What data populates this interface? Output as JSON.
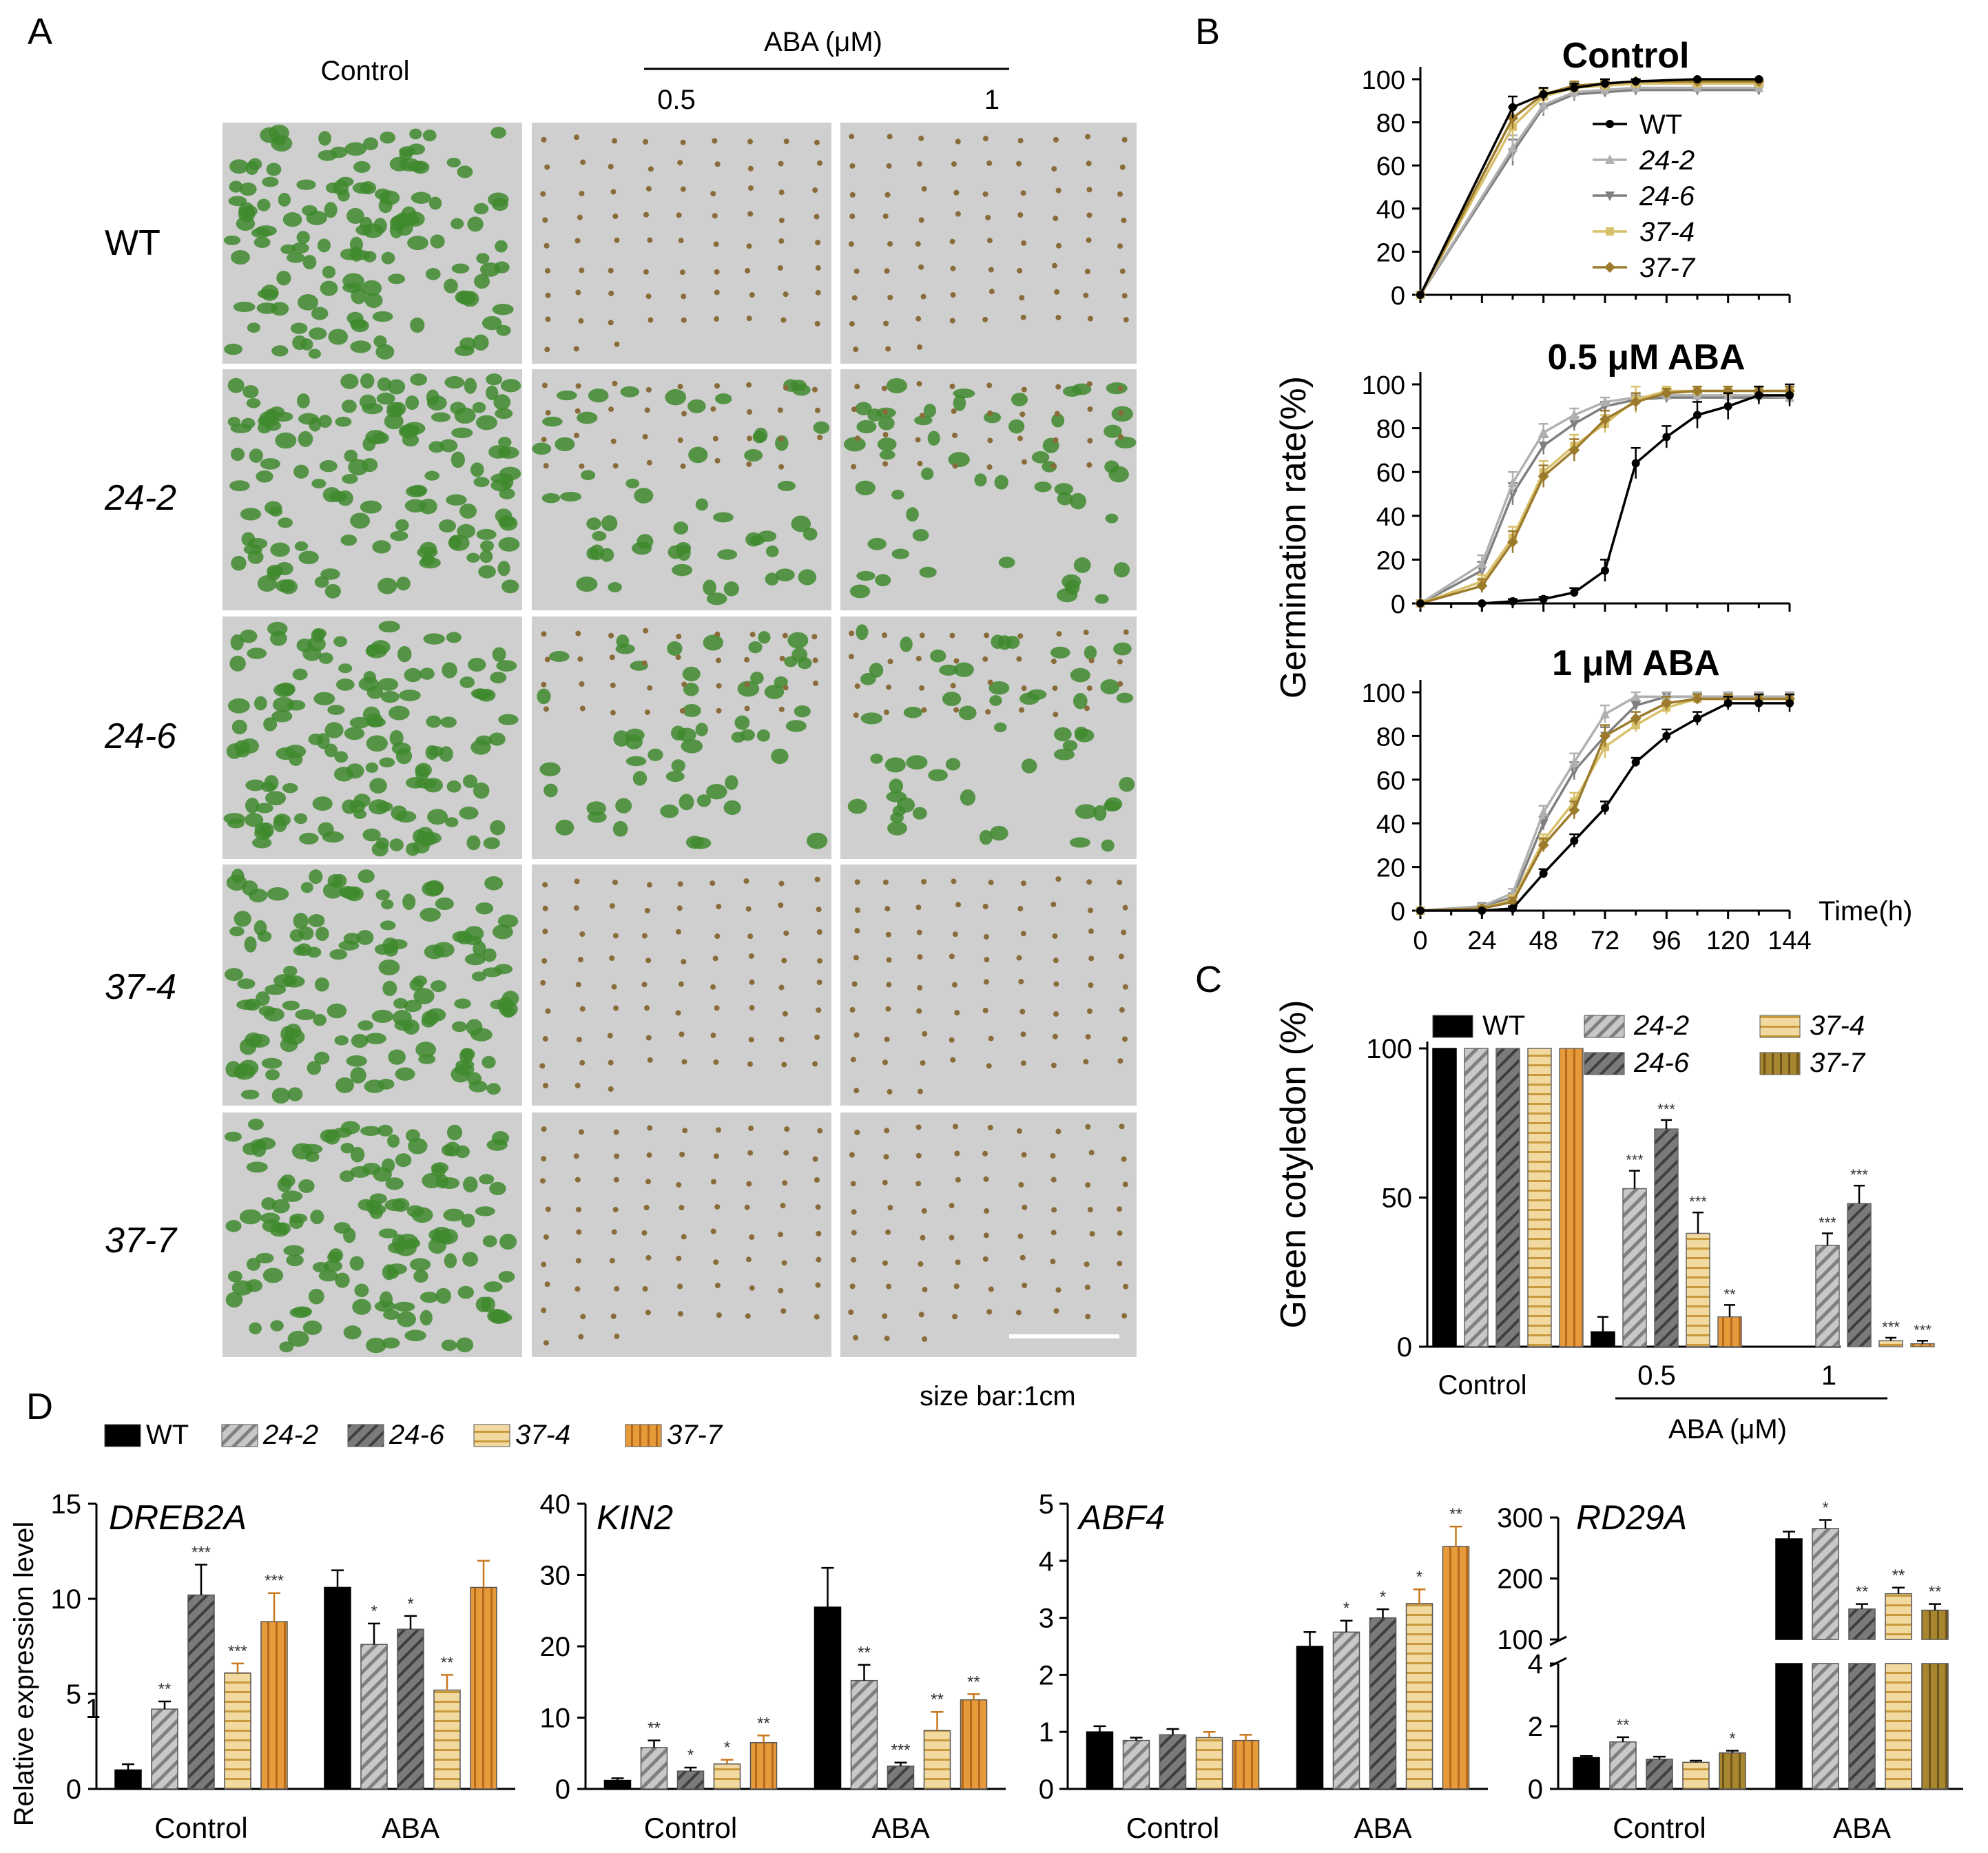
{
  "colors": {
    "WT": "#000000",
    "24-2": "#b0b0b0",
    "24-6": "#7f7f7f",
    "37-4": "#d8c06a",
    "37-7": "#9c7a2c",
    "orange": "#e8962e",
    "plate_bg": "#cfcfcf",
    "plate_seedling": "#3f8a2e",
    "photo_frame": "#ffffff"
  },
  "panel_a": {
    "letter": "A",
    "col_control": "Control",
    "aba_header": "ABA (μM)",
    "aba_levels": [
      "0.5",
      "1"
    ],
    "rows": [
      "WT",
      "24-2",
      "24-6",
      "37-4",
      "37-7"
    ],
    "size_bar": "size bar:1cm",
    "plate_cover": [
      [
        "dense",
        "sparse",
        "sparse"
      ],
      [
        "dense",
        "medium",
        "medium"
      ],
      [
        "dense",
        "medium",
        "medium"
      ],
      [
        "dense",
        "sparse",
        "sparse"
      ],
      [
        "dense",
        "sparse",
        "sparse"
      ]
    ]
  },
  "panel_b": {
    "letter": "B",
    "ylabel": "Germination rate(%)",
    "xlabel": "Time(h)",
    "xticks": [
      "0",
      "24",
      "48",
      "72",
      "96",
      "120",
      "144"
    ],
    "yticks": [
      "0",
      "20",
      "40",
      "60",
      "80",
      "100"
    ],
    "legend": [
      "WT",
      "24-2",
      "24-6",
      "37-4",
      "37-7"
    ]
  },
  "panel_c": {
    "letter": "C",
    "ylabel": "Green cotyledon (%)",
    "yticks": [
      "0",
      "50",
      "100"
    ],
    "groups": [
      "Control",
      "0.5",
      "1"
    ],
    "aba_label": "ABA (μM)",
    "legend": [
      "WT",
      "24-2",
      "24-6",
      "37-4",
      "37-7"
    ]
  },
  "panel_d": {
    "letter": "D",
    "ylabel": "Relative expression level",
    "legend": [
      "WT",
      "24-2",
      "24-6",
      "37-4",
      "37-7"
    ],
    "extra_tick": "1"
  },
  "chart_data": [
    {
      "id": "B-control",
      "type": "line",
      "title": "Control",
      "xlabel": "",
      "ylabel": "Germination rate(%)",
      "x": [
        0,
        36,
        48,
        60,
        72,
        84,
        108,
        132
      ],
      "xlim": [
        0,
        144
      ],
      "ylim": [
        0,
        100
      ],
      "series": [
        {
          "name": "WT",
          "values": [
            0,
            87,
            93,
            96,
            98,
            99,
            100,
            100
          ],
          "err": [
            0,
            5,
            3,
            2,
            2,
            1,
            0,
            0
          ]
        },
        {
          "name": "24-2",
          "values": [
            0,
            68,
            88,
            94,
            95,
            96,
            96,
            96
          ],
          "err": [
            0,
            6,
            4,
            3,
            2,
            2,
            2,
            2
          ]
        },
        {
          "name": "24-6",
          "values": [
            0,
            66,
            87,
            93,
            94,
            95,
            95,
            95
          ],
          "err": [
            0,
            6,
            4,
            3,
            2,
            2,
            2,
            2
          ]
        },
        {
          "name": "37-4",
          "values": [
            0,
            78,
            92,
            96,
            97,
            98,
            98,
            98
          ],
          "err": [
            0,
            5,
            3,
            2,
            2,
            1,
            1,
            1
          ]
        },
        {
          "name": "37-7",
          "values": [
            0,
            82,
            93,
            97,
            98,
            99,
            99,
            99
          ],
          "err": [
            0,
            5,
            3,
            2,
            1,
            1,
            1,
            1
          ]
        }
      ]
    },
    {
      "id": "B-0.5",
      "type": "line",
      "title": "0.5 μM ABA",
      "x": [
        0,
        24,
        36,
        48,
        60,
        72,
        84,
        96,
        108,
        120,
        132,
        144
      ],
      "xlim": [
        0,
        144
      ],
      "ylim": [
        0,
        100
      ],
      "series": [
        {
          "name": "WT",
          "values": [
            0,
            0,
            1,
            2,
            5,
            15,
            64,
            76,
            86,
            90,
            95,
            95
          ],
          "err": [
            0,
            0,
            1,
            1,
            2,
            5,
            7,
            5,
            6,
            6,
            4,
            5
          ]
        },
        {
          "name": "24-2",
          "values": [
            0,
            18,
            55,
            78,
            86,
            92,
            94,
            95,
            95,
            95,
            95,
            94
          ],
          "err": [
            0,
            4,
            5,
            4,
            3,
            2,
            2,
            2,
            2,
            2,
            2,
            3
          ]
        },
        {
          "name": "24-6",
          "values": [
            0,
            15,
            50,
            72,
            82,
            90,
            93,
            94,
            94,
            94,
            94,
            94
          ],
          "err": [
            0,
            4,
            5,
            4,
            3,
            2,
            2,
            2,
            2,
            2,
            2,
            3
          ]
        },
        {
          "name": "37-4",
          "values": [
            0,
            10,
            30,
            60,
            72,
            82,
            93,
            97,
            97,
            97,
            97,
            97
          ],
          "err": [
            0,
            3,
            5,
            5,
            5,
            4,
            6,
            2,
            2,
            2,
            2,
            2
          ]
        },
        {
          "name": "37-7",
          "values": [
            0,
            8,
            28,
            58,
            70,
            84,
            92,
            96,
            97,
            97,
            97,
            97
          ],
          "err": [
            0,
            3,
            5,
            5,
            5,
            4,
            4,
            2,
            2,
            2,
            2,
            2
          ]
        }
      ]
    },
    {
      "id": "B-1",
      "type": "line",
      "title": "1 μM ABA",
      "x": [
        0,
        24,
        36,
        48,
        60,
        72,
        84,
        96,
        108,
        120,
        132,
        144
      ],
      "xlim": [
        0,
        144
      ],
      "ylim": [
        0,
        100
      ],
      "series": [
        {
          "name": "WT",
          "values": [
            0,
            0,
            1,
            17,
            32,
            47,
            68,
            80,
            88,
            95,
            95,
            95
          ],
          "err": [
            0,
            0,
            1,
            2,
            3,
            3,
            2,
            3,
            3,
            3,
            4,
            4
          ]
        },
        {
          "name": "24-2",
          "values": [
            0,
            2,
            8,
            45,
            68,
            90,
            98,
            98,
            98,
            98,
            98,
            98
          ],
          "err": [
            0,
            1,
            2,
            3,
            4,
            4,
            2,
            2,
            2,
            2,
            2,
            2
          ]
        },
        {
          "name": "24-6",
          "values": [
            0,
            2,
            6,
            40,
            64,
            80,
            94,
            98,
            98,
            98,
            98,
            98
          ],
          "err": [
            0,
            1,
            2,
            3,
            4,
            4,
            2,
            2,
            2,
            2,
            2,
            2
          ]
        },
        {
          "name": "37-4",
          "values": [
            0,
            1,
            5,
            32,
            50,
            75,
            85,
            93,
            97,
            97,
            97,
            97
          ],
          "err": [
            0,
            1,
            2,
            3,
            4,
            5,
            3,
            3,
            2,
            2,
            2,
            2
          ]
        },
        {
          "name": "37-7",
          "values": [
            0,
            1,
            4,
            30,
            46,
            80,
            88,
            95,
            97,
            97,
            97,
            97
          ],
          "err": [
            0,
            1,
            2,
            3,
            4,
            5,
            3,
            3,
            2,
            2,
            2,
            2
          ]
        }
      ]
    },
    {
      "id": "C",
      "type": "bar",
      "ylabel": "Green cotyledon (%)",
      "categories": [
        "Control",
        "0.5",
        "1"
      ],
      "ylim": [
        0,
        100
      ],
      "series": [
        {
          "name": "WT",
          "values": [
            100,
            5,
            0
          ],
          "err": [
            0,
            5,
            0
          ],
          "sig": [
            "",
            "",
            ""
          ]
        },
        {
          "name": "24-2",
          "values": [
            100,
            53,
            34
          ],
          "err": [
            0,
            6,
            4
          ],
          "sig": [
            "",
            "***",
            "***"
          ]
        },
        {
          "name": "24-6",
          "values": [
            100,
            73,
            48
          ],
          "err": [
            0,
            3,
            6
          ],
          "sig": [
            "",
            "***",
            "***"
          ]
        },
        {
          "name": "37-4",
          "values": [
            100,
            38,
            2
          ],
          "err": [
            0,
            7,
            1
          ],
          "sig": [
            "",
            "***",
            "***"
          ]
        },
        {
          "name": "37-7",
          "values": [
            100,
            10,
            1
          ],
          "err": [
            0,
            4,
            1
          ],
          "sig": [
            "",
            "**",
            "***"
          ]
        }
      ]
    },
    {
      "id": "D-DREB2A",
      "type": "bar",
      "title": "DREB2A",
      "categories": [
        "Control",
        "ABA"
      ],
      "ylim": [
        0,
        15
      ],
      "yticks": [
        "0",
        "5",
        "10",
        "15"
      ],
      "series": [
        {
          "name": "WT",
          "values": [
            1.0,
            10.6
          ],
          "err": [
            0.3,
            0.9
          ],
          "sig": [
            "",
            ""
          ]
        },
        {
          "name": "24-2",
          "values": [
            4.2,
            7.6
          ],
          "err": [
            0.4,
            1.1
          ],
          "sig": [
            "**",
            "*"
          ]
        },
        {
          "name": "24-6",
          "values": [
            10.2,
            8.4
          ],
          "err": [
            1.6,
            0.7
          ],
          "sig": [
            "***",
            "*"
          ]
        },
        {
          "name": "37-4",
          "values": [
            6.1,
            5.2
          ],
          "err": [
            0.5,
            0.8
          ],
          "sig": [
            "***",
            "**"
          ]
        },
        {
          "name": "37-7",
          "values": [
            8.8,
            10.6
          ],
          "err": [
            1.5,
            1.4
          ],
          "sig": [
            "***",
            ""
          ]
        }
      ]
    },
    {
      "id": "D-KIN2",
      "type": "bar",
      "title": "KIN2",
      "categories": [
        "Control",
        "ABA"
      ],
      "ylim": [
        0,
        40
      ],
      "yticks": [
        "0",
        "10",
        "20",
        "30",
        "40"
      ],
      "series": [
        {
          "name": "WT",
          "values": [
            1.2,
            25.5
          ],
          "err": [
            0.3,
            5.5
          ],
          "sig": [
            "",
            ""
          ]
        },
        {
          "name": "24-2",
          "values": [
            5.8,
            15.2
          ],
          "err": [
            1.0,
            2.2
          ],
          "sig": [
            "**",
            "**"
          ]
        },
        {
          "name": "24-6",
          "values": [
            2.5,
            3.2
          ],
          "err": [
            0.5,
            0.5
          ],
          "sig": [
            "*",
            "***"
          ]
        },
        {
          "name": "37-4",
          "values": [
            3.5,
            8.2
          ],
          "err": [
            0.6,
            2.6
          ],
          "sig": [
            "*",
            "**"
          ]
        },
        {
          "name": "37-7",
          "values": [
            6.5,
            12.5
          ],
          "err": [
            1.0,
            0.8
          ],
          "sig": [
            "**",
            "**"
          ]
        }
      ]
    },
    {
      "id": "D-ABF4",
      "type": "bar",
      "title": "ABF4",
      "categories": [
        "Control",
        "ABA"
      ],
      "ylim": [
        0,
        5
      ],
      "yticks": [
        "0",
        "1",
        "2",
        "3",
        "4",
        "5"
      ],
      "series": [
        {
          "name": "WT",
          "values": [
            1.0,
            2.5
          ],
          "err": [
            0.1,
            0.25
          ],
          "sig": [
            "",
            ""
          ]
        },
        {
          "name": "24-2",
          "values": [
            0.85,
            2.75
          ],
          "err": [
            0.05,
            0.2
          ],
          "sig": [
            "",
            "*"
          ]
        },
        {
          "name": "24-6",
          "values": [
            0.95,
            3.0
          ],
          "err": [
            0.1,
            0.15
          ],
          "sig": [
            "",
            "*"
          ]
        },
        {
          "name": "37-4",
          "values": [
            0.9,
            3.25
          ],
          "err": [
            0.1,
            0.25
          ],
          "sig": [
            "",
            "*"
          ]
        },
        {
          "name": "37-7",
          "values": [
            0.85,
            4.25
          ],
          "err": [
            0.1,
            0.35
          ],
          "sig": [
            "",
            "**"
          ]
        }
      ]
    },
    {
      "id": "D-RD29A",
      "type": "bar",
      "title": "RD29A",
      "categories": [
        "Control",
        "ABA"
      ],
      "yaxis": "broken",
      "lower_ylim": [
        0,
        4
      ],
      "upper_ylim": [
        100,
        300
      ],
      "lower_yticks": [
        "0",
        "2",
        "4"
      ],
      "upper_yticks": [
        "100",
        "200",
        "300"
      ],
      "series": [
        {
          "name": "WT",
          "values": [
            1.0,
            265
          ],
          "err": [
            0.05,
            12
          ],
          "sig": [
            "",
            ""
          ]
        },
        {
          "name": "24-2",
          "values": [
            1.5,
            282
          ],
          "err": [
            0.15,
            14
          ],
          "sig": [
            "**",
            "*"
          ]
        },
        {
          "name": "24-6",
          "values": [
            0.95,
            150
          ],
          "err": [
            0.08,
            8
          ],
          "sig": [
            "",
            "**"
          ]
        },
        {
          "name": "37-4",
          "values": [
            0.85,
            175
          ],
          "err": [
            0.05,
            10
          ],
          "sig": [
            "",
            "**"
          ]
        },
        {
          "name": "37-7",
          "values": [
            1.15,
            148
          ],
          "err": [
            0.07,
            10
          ],
          "sig": [
            "*",
            "**"
          ]
        }
      ]
    }
  ]
}
